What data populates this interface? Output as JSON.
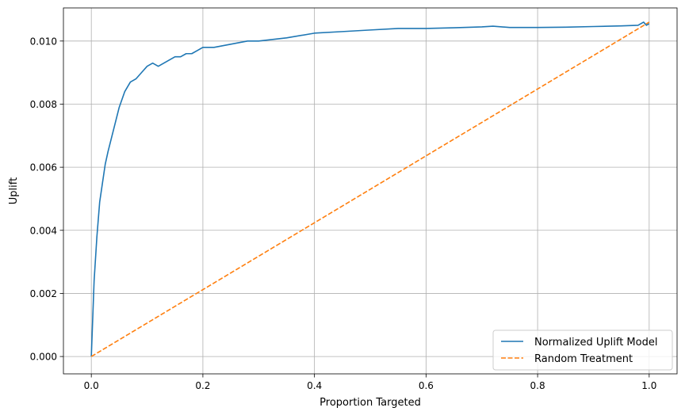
{
  "chart_data": {
    "type": "line",
    "title": "",
    "xlabel": "Proportion Targeted",
    "ylabel": "Uplift",
    "xlim": [
      -0.05,
      1.05
    ],
    "ylim": [
      -0.00055,
      0.01105
    ],
    "x_ticks": [
      0.0,
      0.2,
      0.4,
      0.6,
      0.8,
      1.0
    ],
    "x_tick_labels": [
      "0.0",
      "0.2",
      "0.4",
      "0.6",
      "0.8",
      "1.0"
    ],
    "y_ticks": [
      0.0,
      0.002,
      0.004,
      0.006,
      0.008,
      0.01
    ],
    "y_tick_labels": [
      "0.000",
      "0.002",
      "0.004",
      "0.006",
      "0.008",
      "0.010"
    ],
    "grid": true,
    "legend_position": "lower right",
    "series": [
      {
        "name": "Normalized Uplift Model",
        "color": "#1f77b4",
        "line_style": "solid",
        "x": [
          0.0,
          0.005,
          0.01,
          0.015,
          0.02,
          0.025,
          0.03,
          0.04,
          0.05,
          0.06,
          0.07,
          0.08,
          0.09,
          0.1,
          0.11,
          0.12,
          0.13,
          0.14,
          0.15,
          0.16,
          0.17,
          0.18,
          0.19,
          0.2,
          0.22,
          0.25,
          0.28,
          0.3,
          0.35,
          0.4,
          0.45,
          0.5,
          0.55,
          0.6,
          0.65,
          0.7,
          0.72,
          0.75,
          0.8,
          0.85,
          0.9,
          0.95,
          0.98,
          0.99,
          0.995,
          1.0
        ],
        "y": [
          0.0,
          0.0024,
          0.0038,
          0.0049,
          0.0055,
          0.0061,
          0.0065,
          0.0072,
          0.0079,
          0.0084,
          0.0087,
          0.0088,
          0.009,
          0.0092,
          0.0093,
          0.0092,
          0.0093,
          0.0094,
          0.0095,
          0.0095,
          0.0096,
          0.0096,
          0.0097,
          0.0098,
          0.0098,
          0.0099,
          0.01,
          0.01,
          0.0101,
          0.01025,
          0.0103,
          0.01035,
          0.0104,
          0.0104,
          0.01042,
          0.01045,
          0.01047,
          0.01043,
          0.01043,
          0.01044,
          0.01046,
          0.01048,
          0.0105,
          0.0106,
          0.0105,
          0.01055
        ]
      },
      {
        "name": "Random Treatment",
        "color": "#ff7f0e",
        "line_style": "dashed",
        "x": [
          0.0,
          1.0
        ],
        "y": [
          0.0,
          0.0106
        ]
      }
    ]
  }
}
